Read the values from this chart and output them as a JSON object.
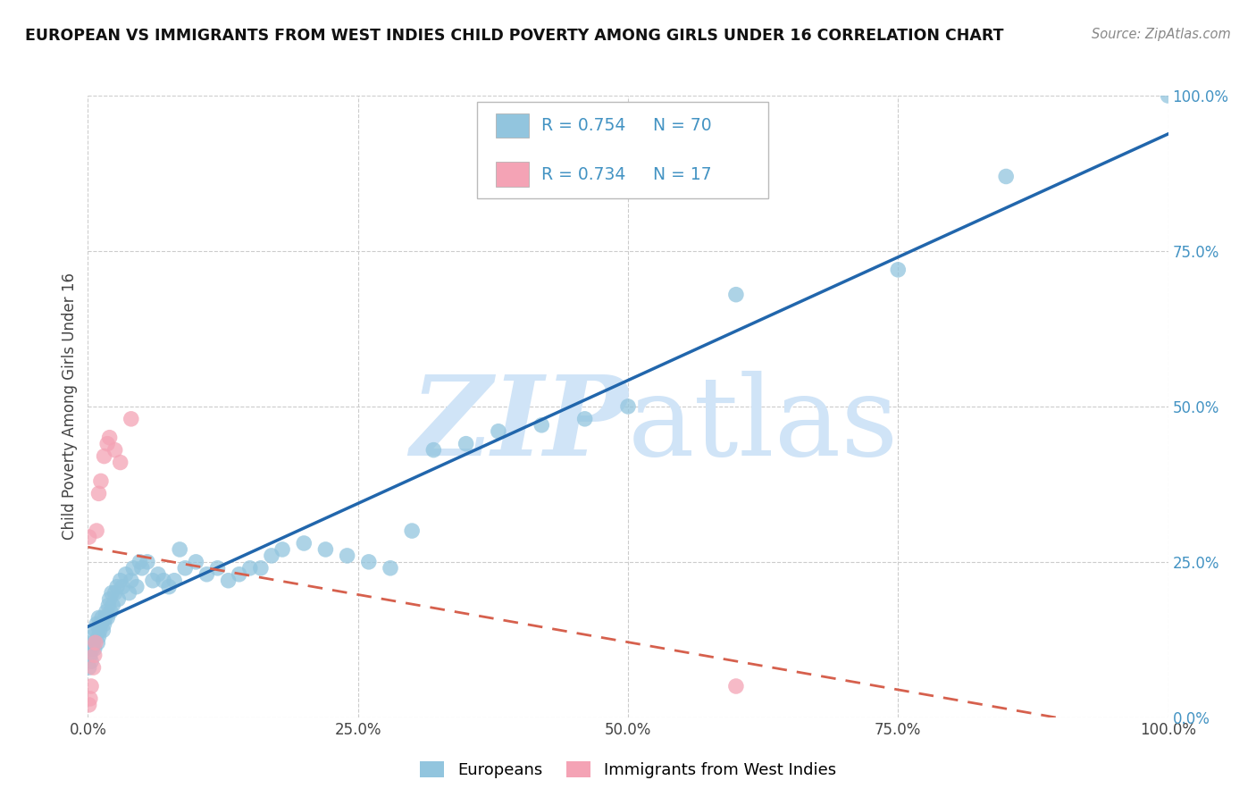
{
  "title": "EUROPEAN VS IMMIGRANTS FROM WEST INDIES CHILD POVERTY AMONG GIRLS UNDER 16 CORRELATION CHART",
  "source": "Source: ZipAtlas.com",
  "ylabel": "Child Poverty Among Girls Under 16",
  "legend_label_1": "Europeans",
  "legend_label_2": "Immigrants from West Indies",
  "r1": "0.754",
  "n1": "70",
  "r2": "0.734",
  "n2": "17",
  "color_blue": "#92c5de",
  "color_blue_line": "#2166ac",
  "color_pink": "#f4a3b5",
  "color_pink_line": "#d6604d",
  "color_blue_text": "#4393c3",
  "background_color": "#ffffff",
  "grid_color": "#cccccc",
  "watermark_color": "#d0e4f7",
  "blue_x": [
    0.001,
    0.002,
    0.003,
    0.004,
    0.005,
    0.005,
    0.006,
    0.007,
    0.008,
    0.009,
    0.01,
    0.01,
    0.011,
    0.012,
    0.013,
    0.014,
    0.015,
    0.016,
    0.017,
    0.018,
    0.019,
    0.02,
    0.021,
    0.022,
    0.023,
    0.025,
    0.027,
    0.028,
    0.03,
    0.032,
    0.035,
    0.038,
    0.04,
    0.042,
    0.045,
    0.048,
    0.05,
    0.055,
    0.06,
    0.065,
    0.07,
    0.075,
    0.08,
    0.085,
    0.09,
    0.1,
    0.11,
    0.12,
    0.13,
    0.14,
    0.15,
    0.16,
    0.17,
    0.18,
    0.2,
    0.22,
    0.24,
    0.26,
    0.28,
    0.3,
    0.32,
    0.35,
    0.38,
    0.42,
    0.46,
    0.5,
    0.6,
    0.75,
    0.85,
    1.0
  ],
  "blue_y": [
    0.08,
    0.1,
    0.09,
    0.11,
    0.12,
    0.13,
    0.11,
    0.14,
    0.15,
    0.12,
    0.16,
    0.13,
    0.14,
    0.15,
    0.16,
    0.14,
    0.15,
    0.16,
    0.17,
    0.16,
    0.18,
    0.19,
    0.17,
    0.2,
    0.18,
    0.2,
    0.21,
    0.19,
    0.22,
    0.21,
    0.23,
    0.2,
    0.22,
    0.24,
    0.21,
    0.25,
    0.24,
    0.25,
    0.22,
    0.23,
    0.22,
    0.21,
    0.22,
    0.27,
    0.24,
    0.25,
    0.23,
    0.24,
    0.22,
    0.23,
    0.24,
    0.24,
    0.26,
    0.27,
    0.28,
    0.27,
    0.26,
    0.25,
    0.24,
    0.3,
    0.43,
    0.44,
    0.46,
    0.47,
    0.48,
    0.5,
    0.68,
    0.72,
    0.87,
    1.0
  ],
  "pink_x": [
    0.001,
    0.002,
    0.003,
    0.005,
    0.006,
    0.007,
    0.008,
    0.01,
    0.012,
    0.015,
    0.018,
    0.02,
    0.025,
    0.03,
    0.04,
    0.6,
    0.001
  ],
  "pink_y": [
    0.02,
    0.03,
    0.05,
    0.08,
    0.1,
    0.12,
    0.3,
    0.36,
    0.38,
    0.42,
    0.44,
    0.45,
    0.43,
    0.41,
    0.48,
    0.05,
    0.29
  ]
}
